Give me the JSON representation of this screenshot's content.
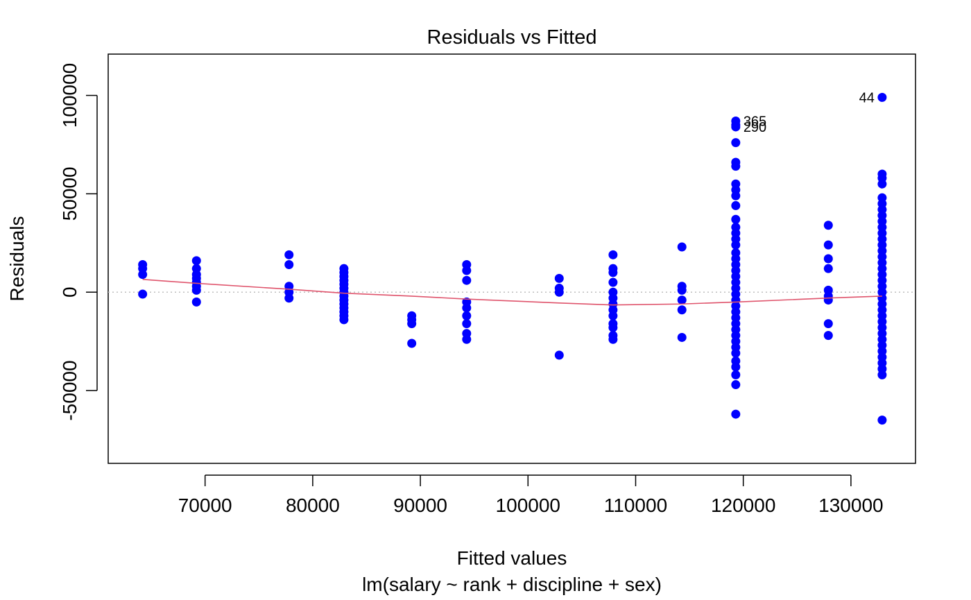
{
  "chart_data": {
    "type": "scatter",
    "title": "Residuals vs Fitted",
    "xlabel": "Fitted values",
    "subtitle": "lm(salary ~ rank + discipline + sex)",
    "ylabel": "Residuals",
    "xlim": [
      61000,
      136000
    ],
    "ylim": [
      -87000,
      121000
    ],
    "x_ticks": [
      70000,
      80000,
      90000,
      100000,
      110000,
      120000,
      130000
    ],
    "x_tick_labels": [
      "70000",
      "80000",
      "90000",
      "100000",
      "110000",
      "120000",
      "130000"
    ],
    "y_ticks": [
      -50000,
      0,
      50000,
      100000
    ],
    "y_tick_labels": [
      "-50000",
      "0",
      "50000",
      "100000"
    ],
    "grid": false,
    "reference_line": 0,
    "point_color": "#0000ff",
    "smooth_color": "#df536b",
    "reference_color": "#bebebe",
    "points": [
      {
        "x": 64200,
        "y": [
          14000,
          12000,
          9000,
          -1000
        ]
      },
      {
        "x": 69200,
        "y": [
          16000,
          12000,
          9000,
          7000,
          5000,
          3000,
          1000,
          -5000
        ]
      },
      {
        "x": 77800,
        "y": [
          19000,
          14000,
          3000,
          0,
          -3000
        ]
      },
      {
        "x": 82900,
        "y": [
          12000,
          10000,
          8000,
          6000,
          4000,
          2000,
          0,
          -2000,
          -4000,
          -6000,
          -8000,
          -10000,
          -12000,
          -14000
        ]
      },
      {
        "x": 89200,
        "y": [
          -12000,
          -14000,
          -16000,
          -26000
        ]
      },
      {
        "x": 94300,
        "y": [
          14000,
          11000,
          6000,
          -5000,
          -8000,
          -12000,
          -16000,
          -21000,
          -24000
        ]
      },
      {
        "x": 102900,
        "y": [
          7000,
          2000,
          0,
          -32000
        ]
      },
      {
        "x": 107900,
        "y": [
          19000,
          12000,
          10000,
          5000,
          0,
          -3000,
          -6000,
          -9000,
          -12000,
          -16000,
          -18000,
          -22000,
          -24000
        ]
      },
      {
        "x": 114300,
        "y": [
          23000,
          3000,
          1000,
          -4000,
          -9000,
          -23000
        ]
      },
      {
        "x": 119300,
        "y": [
          87000,
          85000,
          84000,
          76000,
          66000,
          64000,
          55000,
          52000,
          49000,
          44000,
          37000,
          33000,
          30000,
          27000,
          24000,
          20000,
          17000,
          14000,
          11000,
          8000,
          5000,
          2000,
          -1000,
          -4000,
          -7000,
          -10000,
          -13000,
          -16000,
          -19000,
          -22000,
          -25000,
          -28000,
          -31000,
          -35000,
          -38000,
          -42000,
          -47000,
          -62000
        ]
      },
      {
        "x": 127900,
        "y": [
          34000,
          24000,
          17000,
          12000,
          1000,
          -2000,
          -4000,
          -16000,
          -22000
        ]
      },
      {
        "x": 132900,
        "y": [
          99000,
          60000,
          58000,
          55000,
          48000,
          45000,
          42000,
          39000,
          36000,
          33000,
          30000,
          27000,
          24000,
          21000,
          18000,
          15000,
          12000,
          9000,
          6000,
          3000,
          0,
          -3000,
          -6000,
          -9000,
          -12000,
          -15000,
          -18000,
          -21000,
          -24000,
          -27000,
          -30000,
          -33000,
          -36000,
          -39000,
          -42000,
          -65000
        ]
      }
    ],
    "smooth": {
      "x": [
        64200,
        69200,
        77800,
        82900,
        89200,
        94300,
        102900,
        107900,
        114300,
        119300,
        127900,
        132900
      ],
      "y": [
        6500,
        4500,
        1500,
        -500,
        -2000,
        -3500,
        -5500,
        -6500,
        -6000,
        -5000,
        -3000,
        -2000
      ]
    },
    "annotations": [
      {
        "text": "365",
        "x": 119300,
        "y": 87000,
        "side": "right"
      },
      {
        "text": "290",
        "x": 119300,
        "y": 84000,
        "side": "right"
      },
      {
        "text": "44",
        "x": 132900,
        "y": 99000,
        "side": "left"
      }
    ]
  }
}
